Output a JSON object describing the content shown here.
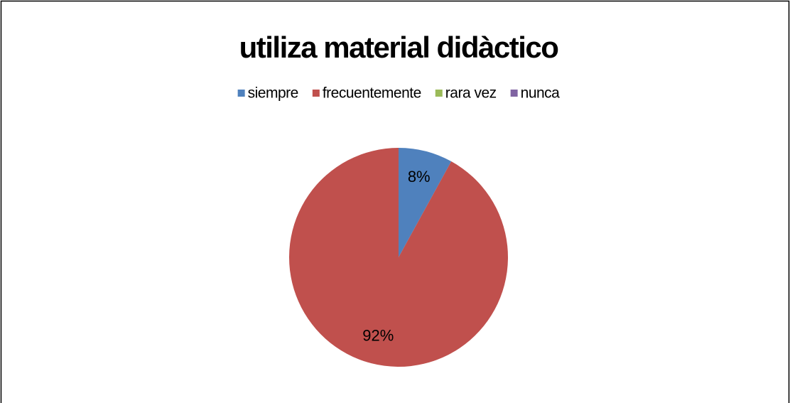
{
  "chart_data": {
    "type": "pie",
    "title": "utiliza material didàctico",
    "categories": [
      "siempre",
      "frecuentemente",
      "rara vez",
      "nunca"
    ],
    "values": [
      8,
      92,
      0,
      0
    ],
    "value_labels": [
      "8%",
      "92%",
      null,
      null
    ],
    "colors": [
      "#4f81bd",
      "#c0504d",
      "#9bbb59",
      "#8064a2"
    ],
    "legend": "top"
  }
}
